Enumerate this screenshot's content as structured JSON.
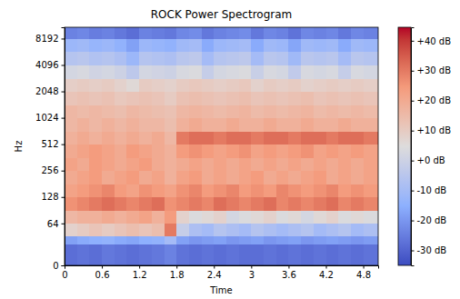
{
  "chart_data": {
    "type": "heatmap",
    "title": "ROCK Power Spectrogram",
    "x_label": "Time",
    "y_label": "Hz",
    "log": "y",
    "grid": false,
    "xlim": [
      0,
      5.04
    ],
    "xticks": [
      0,
      0.6,
      1.2,
      1.8,
      2.4,
      3,
      3.6,
      4.2,
      4.8
    ],
    "ylim": [
      0,
      11025
    ],
    "yticks": [
      0,
      64,
      128,
      256,
      512,
      1024,
      2048,
      4096,
      8192
    ],
    "cells": {
      "x_edges": [
        0,
        0.2,
        0.4,
        0.6,
        0.8,
        1.0,
        1.2,
        1.4,
        1.6,
        1.8,
        2.0,
        2.2,
        2.4,
        2.6,
        2.8,
        3.0,
        3.2,
        3.4,
        3.6,
        3.8,
        4.0,
        4.2,
        4.4,
        4.6,
        4.8,
        5.04
      ],
      "y_edges": [
        0,
        32,
        45,
        64,
        90,
        128,
        181,
        256,
        362,
        512,
        724,
        1024,
        1448,
        2048,
        2896,
        4096,
        5793,
        8192,
        11025
      ],
      "values": [
        [
          -28,
          -27,
          -28,
          -26,
          -27,
          -28,
          -27,
          -26,
          -24,
          -27,
          -28,
          -27,
          -28,
          -27,
          -28,
          -28,
          -27,
          -28,
          -27,
          -28,
          -27,
          -28,
          -27,
          -28,
          -27
        ],
        [
          -18,
          -16,
          -15,
          -14,
          -16,
          -17,
          -15,
          -14,
          -10,
          -18,
          -20,
          -19,
          -18,
          -20,
          -19,
          -18,
          -20,
          -19,
          -18,
          -20,
          -19,
          -18,
          -19,
          -20,
          -19
        ],
        [
          8,
          10,
          12,
          10,
          12,
          14,
          12,
          14,
          30,
          -2,
          -8,
          -10,
          -6,
          -8,
          -10,
          -6,
          -8,
          -10,
          -8,
          -6,
          -10,
          -8,
          -6,
          -10,
          -8
        ],
        [
          16,
          18,
          18,
          20,
          18,
          20,
          22,
          18,
          24,
          8,
          4,
          6,
          8,
          2,
          4,
          6,
          8,
          4,
          6,
          2,
          6,
          8,
          4,
          6,
          4
        ],
        [
          26,
          28,
          30,
          32,
          30,
          28,
          30,
          32,
          26,
          28,
          30,
          28,
          32,
          30,
          28,
          30,
          32,
          28,
          30,
          28,
          30,
          32,
          28,
          30,
          28
        ],
        [
          22,
          24,
          26,
          28,
          24,
          22,
          26,
          24,
          22,
          26,
          28,
          24,
          26,
          28,
          24,
          26,
          24,
          28,
          26,
          24,
          26,
          28,
          24,
          26,
          24
        ],
        [
          20,
          22,
          24,
          20,
          22,
          24,
          20,
          22,
          18,
          22,
          24,
          20,
          22,
          20,
          22,
          24,
          20,
          22,
          20,
          22,
          24,
          20,
          22,
          20,
          22
        ],
        [
          22,
          20,
          24,
          22,
          20,
          22,
          24,
          20,
          18,
          20,
          22,
          20,
          22,
          20,
          22,
          20,
          22,
          20,
          22,
          20,
          22,
          20,
          22,
          20,
          22
        ],
        [
          20,
          22,
          24,
          22,
          20,
          24,
          22,
          20,
          18,
          24,
          26,
          24,
          22,
          24,
          26,
          22,
          24,
          22,
          24,
          26,
          22,
          24,
          22,
          24,
          22
        ],
        [
          18,
          20,
          18,
          20,
          18,
          20,
          18,
          20,
          16,
          30,
          32,
          32,
          30,
          32,
          32,
          30,
          32,
          32,
          30,
          32,
          32,
          30,
          32,
          32,
          30
        ],
        [
          16,
          18,
          16,
          18,
          16,
          18,
          16,
          16,
          14,
          18,
          20,
          18,
          18,
          20,
          18,
          18,
          20,
          18,
          18,
          20,
          18,
          18,
          20,
          18,
          18
        ],
        [
          16,
          15,
          16,
          15,
          14,
          16,
          15,
          14,
          13,
          16,
          17,
          16,
          15,
          16,
          17,
          15,
          16,
          15,
          16,
          17,
          15,
          16,
          15,
          16,
          15
        ],
        [
          12,
          13,
          12,
          13,
          11,
          12,
          13,
          12,
          10,
          13,
          14,
          13,
          12,
          13,
          14,
          12,
          13,
          12,
          13,
          14,
          12,
          13,
          12,
          13,
          12
        ],
        [
          9,
          10,
          9,
          10,
          8,
          6,
          10,
          9,
          8,
          10,
          11,
          10,
          9,
          10,
          11,
          8,
          10,
          9,
          10,
          8,
          9,
          10,
          9,
          10,
          9
        ],
        [
          2,
          3,
          1,
          2,
          0,
          -4,
          2,
          1,
          0,
          3,
          4,
          -2,
          2,
          3,
          4,
          -1,
          3,
          2,
          -3,
          3,
          2,
          3,
          -2,
          3,
          2
        ],
        [
          -6,
          -5,
          -7,
          -6,
          -8,
          -12,
          -6,
          -7,
          -8,
          -5,
          -4,
          -10,
          -6,
          -5,
          -4,
          -10,
          -5,
          -6,
          -11,
          -5,
          -6,
          -5,
          -10,
          -5,
          -6
        ],
        [
          -12,
          -11,
          -13,
          -12,
          -14,
          -18,
          -12,
          -13,
          -14,
          -11,
          -10,
          -16,
          -12,
          -11,
          -10,
          -16,
          -11,
          -12,
          -17,
          -11,
          -12,
          -11,
          -16,
          -11,
          -12
        ],
        [
          -24,
          -23,
          -25,
          -24,
          -26,
          -28,
          -24,
          -25,
          -26,
          -23,
          -22,
          -26,
          -24,
          -23,
          -22,
          -26,
          -23,
          -24,
          -27,
          -23,
          -24,
          -23,
          -26,
          -23,
          -24
        ]
      ]
    },
    "colorbar": {
      "range": [
        -35,
        44.5
      ],
      "ticks": [
        {
          "value": 40,
          "label": "+40 dB"
        },
        {
          "value": 30,
          "label": "+30 dB"
        },
        {
          "value": 20,
          "label": "+20 dB"
        },
        {
          "value": 10,
          "label": "+10 dB"
        },
        {
          "value": 0,
          "label": "+0 dB"
        },
        {
          "value": -10,
          "label": "-10 dB"
        },
        {
          "value": -20,
          "label": "-20 dB"
        },
        {
          "value": -30,
          "label": "-30 dB"
        }
      ]
    }
  }
}
